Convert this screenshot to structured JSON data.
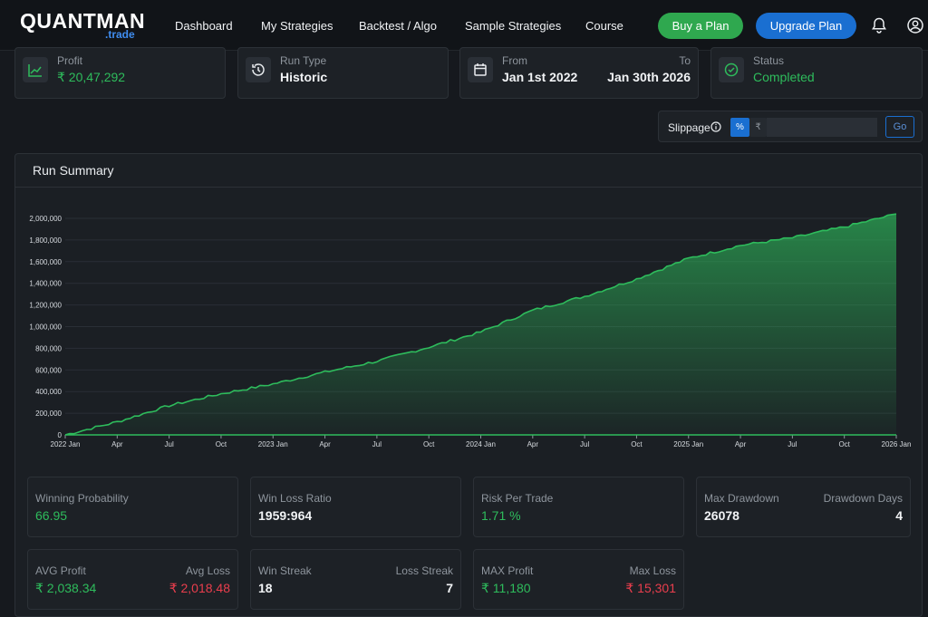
{
  "logo": {
    "main": "QUANTMAN",
    "sub": ".trade"
  },
  "nav": {
    "items": [
      "Dashboard",
      "My Strategies",
      "Backtest / Algo",
      "Sample Strategies",
      "Course"
    ],
    "buy_label": "Buy a Plan",
    "upgrade_label": "Upgrade Plan",
    "icons": [
      "bell-icon",
      "user-circle-icon"
    ]
  },
  "summary_cards": {
    "profit": {
      "label": "Profit",
      "value": "₹ 20,47,292",
      "icon": "line-chart-icon"
    },
    "run_type": {
      "label": "Run Type",
      "value": "Historic",
      "icon": "history-icon"
    },
    "date_range": {
      "from_label": "From",
      "from_value": "Jan 1st 2022",
      "to_label": "To",
      "to_value": "Jan 30th 2026",
      "icon": "calendar-icon"
    },
    "status": {
      "label": "Status",
      "value": "Completed",
      "icon": "check-circle-icon"
    }
  },
  "slippage": {
    "label": "Slippage",
    "info_icon": "info-icon",
    "percent_label": "%",
    "rupee_label": "₹",
    "input_value": "",
    "go_label": "Go"
  },
  "run_summary": {
    "title": "Run Summary"
  },
  "chart_data": {
    "type": "area",
    "title": "",
    "xlabel": "",
    "ylabel": "",
    "ylim": [
      0,
      2000000
    ],
    "y_ticks": [
      "0",
      "200,000",
      "400,000",
      "600,000",
      "800,000",
      "1,000,000",
      "1,200,000",
      "1,400,000",
      "1,600,000",
      "1,800,000",
      "2,000,000"
    ],
    "x_ticks": [
      "2022 Jan",
      "Apr",
      "Jul",
      "Oct",
      "2023 Jan",
      "Apr",
      "Jul",
      "Oct",
      "2024 Jan",
      "Apr",
      "Jul",
      "Oct",
      "2025 Jan",
      "Apr",
      "Jul",
      "Oct",
      "2026 Jan"
    ],
    "series": [
      {
        "color": "#2ebc5c",
        "x": [
          "2022-01",
          "2022-04",
          "2022-07",
          "2022-10",
          "2023-01",
          "2023-04",
          "2023-07",
          "2023-10",
          "2024-01",
          "2024-04",
          "2024-07",
          "2024-10",
          "2025-01",
          "2025-04",
          "2025-07",
          "2025-10",
          "2026-01"
        ],
        "values": [
          0,
          120000,
          270000,
          380000,
          470000,
          580000,
          680000,
          810000,
          950000,
          1150000,
          1280000,
          1440000,
          1630000,
          1750000,
          1820000,
          1920000,
          2040000
        ]
      }
    ]
  },
  "stats": {
    "winning_probability": {
      "label": "Winning Probability",
      "value": "66.95"
    },
    "win_loss_ratio": {
      "label": "Win Loss Ratio",
      "value": "1959:964"
    },
    "risk_per_trade": {
      "label": "Risk Per Trade",
      "value": "1.71 %"
    },
    "max_drawdown": {
      "label": "Max Drawdown",
      "value": "26078"
    },
    "drawdown_days": {
      "label": "Drawdown Days",
      "value": "4"
    },
    "avg_profit": {
      "label": "AVG Profit",
      "value": "₹ 2,038.34"
    },
    "avg_loss": {
      "label": "Avg Loss",
      "value": "₹ 2,018.48"
    },
    "win_streak": {
      "label": "Win Streak",
      "value": "18"
    },
    "loss_streak": {
      "label": "Loss Streak",
      "value": "7"
    },
    "max_profit": {
      "label": "MAX Profit",
      "value": "₹ 11,180"
    },
    "max_loss": {
      "label": "Max Loss",
      "value": "₹ 15,301"
    }
  }
}
